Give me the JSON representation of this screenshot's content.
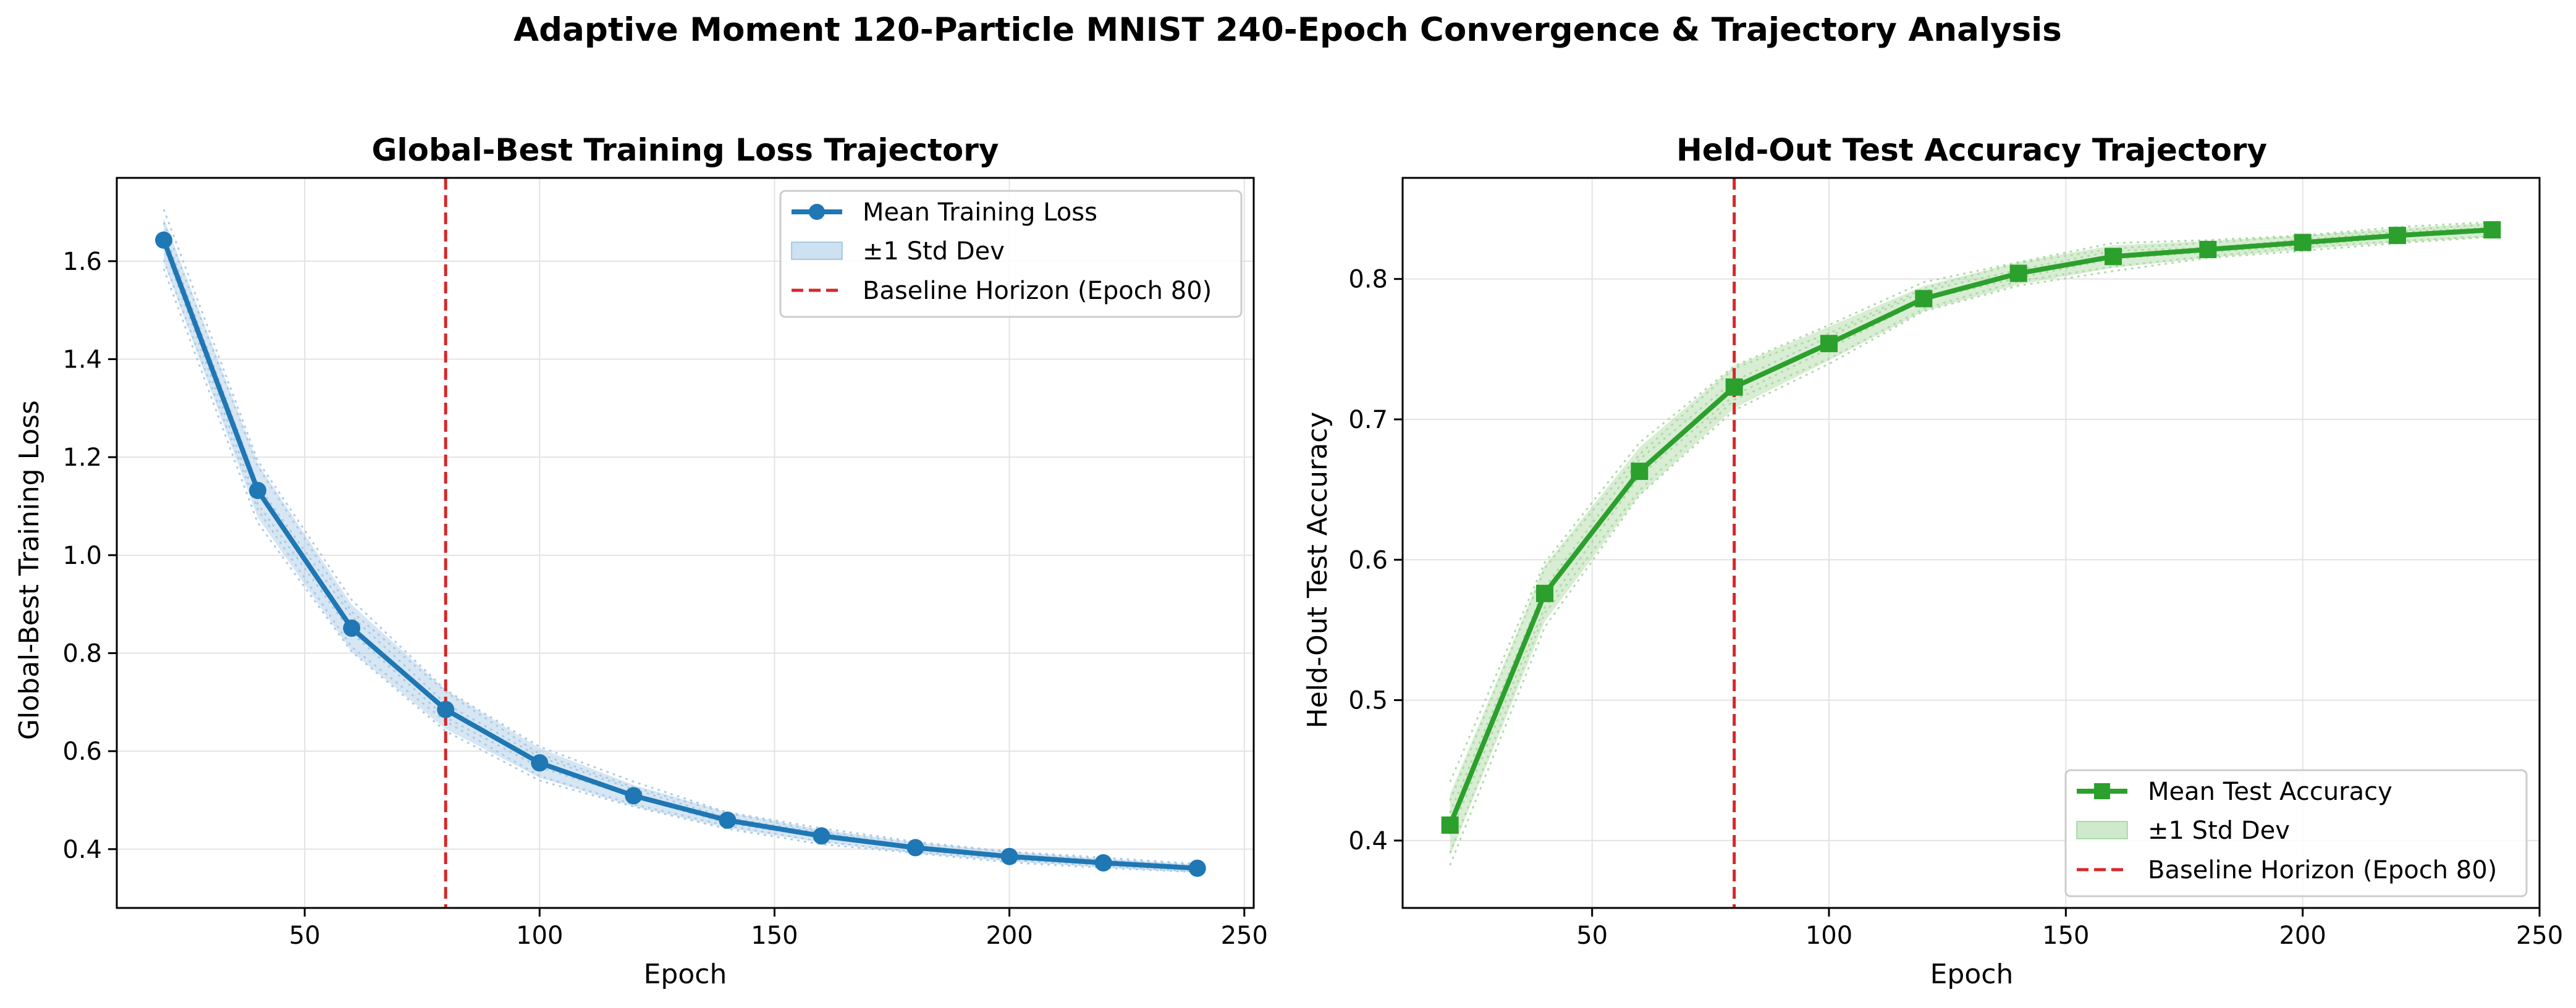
{
  "figure": {
    "title": "Adaptive Moment 120-Particle MNIST 240-Epoch Convergence & Trajectory Analysis"
  },
  "colors": {
    "loss": "#1f77b4",
    "loss_band": "#a6c8e4",
    "accuracy": "#2ca02c",
    "accuracy_band": "#a8d8a0",
    "baseline": "#d62728",
    "grid": "#e3e3e3"
  },
  "chart_data": [
    {
      "type": "line",
      "title": "Global-Best Training Loss Trajectory",
      "xlabel": "Epoch",
      "ylabel": "Global-Best Training Loss",
      "xlim": [
        10,
        252
      ],
      "ylim": [
        0.28,
        1.77
      ],
      "xticks": [
        50,
        100,
        150,
        200,
        250
      ],
      "yticks": [
        0.4,
        0.6,
        0.8,
        1.0,
        1.2,
        1.4,
        1.6
      ],
      "ytick_decimals": 1,
      "grid": true,
      "legend_position": "top-right",
      "x": [
        20,
        40,
        60,
        80,
        100,
        120,
        140,
        160,
        180,
        200,
        220,
        240
      ],
      "series": [
        {
          "name": "Mean Training Loss",
          "marker": "circle",
          "values": [
            1.643,
            1.132,
            0.851,
            0.685,
            0.576,
            0.509,
            0.459,
            0.427,
            0.403,
            0.385,
            0.372,
            0.361
          ],
          "std": [
            0.045,
            0.055,
            0.048,
            0.04,
            0.03,
            0.022,
            0.016,
            0.013,
            0.011,
            0.01,
            0.009,
            0.008
          ]
        }
      ],
      "band_label": "±1 Std Dev",
      "vline": {
        "x": 80,
        "label": "Baseline Horizon (Epoch 80)"
      }
    },
    {
      "type": "line",
      "title": "Held-Out Test Accuracy Trajectory",
      "xlabel": "Epoch",
      "ylabel": "Held-Out Test Accuracy",
      "xlim": [
        10,
        250
      ],
      "ylim": [
        0.352,
        0.872
      ],
      "xticks": [
        50,
        100,
        150,
        200,
        250
      ],
      "yticks": [
        0.4,
        0.5,
        0.6,
        0.7,
        0.8
      ],
      "ytick_decimals": 1,
      "grid": true,
      "legend_position": "bottom-right",
      "x": [
        20,
        40,
        60,
        80,
        100,
        120,
        140,
        160,
        180,
        200,
        220,
        240
      ],
      "series": [
        {
          "name": "Mean Test Accuracy",
          "marker": "square",
          "values": [
            0.411,
            0.576,
            0.663,
            0.723,
            0.754,
            0.786,
            0.804,
            0.816,
            0.821,
            0.826,
            0.831,
            0.835
          ],
          "std": [
            0.022,
            0.02,
            0.017,
            0.015,
            0.012,
            0.009,
            0.008,
            0.008,
            0.006,
            0.005,
            0.005,
            0.005
          ]
        }
      ],
      "band_label": "±1 Std Dev",
      "vline": {
        "x": 80,
        "label": "Baseline Horizon (Epoch 80)"
      }
    }
  ]
}
